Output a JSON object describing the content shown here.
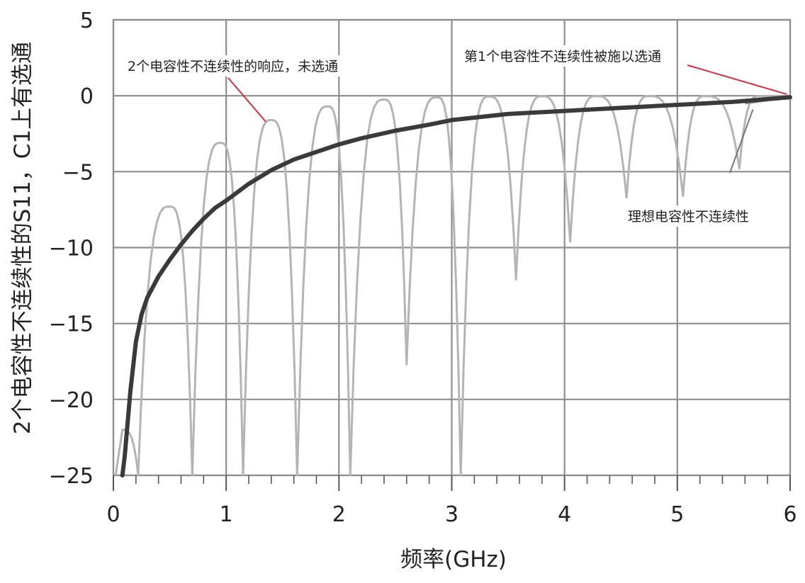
{
  "chart_data": {
    "type": "line",
    "title": "",
    "xlabel": "频率(GHz)",
    "ylabel": "2个电容性不连续性的S11，C1上有选通",
    "xlim": [
      0,
      6
    ],
    "ylim": [
      -25,
      5
    ],
    "x_ticks": [
      "0",
      "1",
      "2",
      "3",
      "4",
      "5",
      "6"
    ],
    "y_ticks": [
      "5",
      "0",
      "−5",
      "−10",
      "−15",
      "−20",
      "−25"
    ],
    "grid": true,
    "series": [
      {
        "name": "理想电容性不连续性",
        "color": "#3a3a3a",
        "x": [
          0.08,
          0.1,
          0.15,
          0.2,
          0.25,
          0.3,
          0.4,
          0.5,
          0.6,
          0.7,
          0.8,
          0.9,
          1.0,
          1.2,
          1.4,
          1.6,
          1.8,
          2.0,
          2.2,
          2.5,
          2.8,
          3.0,
          3.5,
          4.0,
          4.5,
          5.0,
          5.5,
          6.0
        ],
        "values": [
          -25,
          -23.8,
          -19.5,
          -16.2,
          -14.4,
          -13.3,
          -11.9,
          -10.8,
          -9.8,
          -8.9,
          -8.1,
          -7.4,
          -6.9,
          -5.8,
          -4.9,
          -4.2,
          -3.7,
          -3.2,
          -2.8,
          -2.3,
          -1.9,
          -1.6,
          -1.2,
          -1.0,
          -0.8,
          -0.6,
          -0.4,
          -0.1
        ]
      },
      {
        "name": "2个电容性不连续性的响应，未选通",
        "color": "#b4b4b4",
        "peaks_x": [
          0.08,
          0.5,
          0.95,
          1.4,
          1.9,
          2.4,
          2.87,
          3.33,
          3.8,
          4.28,
          4.75,
          5.25,
          5.73
        ],
        "peaks_y": [
          -22,
          -7.3,
          -3.1,
          -1.6,
          -0.7,
          -0.25,
          -0.1,
          -0.05,
          -0.03,
          -0.02,
          -0.02,
          -0.02,
          -0.02
        ],
        "nulls_x": [
          0.22,
          0.7,
          1.15,
          1.63,
          2.1,
          2.6,
          3.08,
          3.57,
          4.05,
          4.55,
          5.05,
          5.55
        ],
        "nulls_y": [
          -25,
          -25,
          -25,
          -25,
          -25,
          -17.7,
          -25,
          -12.1,
          -9.6,
          -6.7,
          -6.6,
          -4.8
        ]
      },
      {
        "name": "第1个电容性不连续性被施以选通",
        "color": "#8c8c8c",
        "x": [
          5.6,
          5.8,
          6.0
        ],
        "values": [
          -0.5,
          -0.3,
          0
        ]
      }
    ],
    "annotations": [
      {
        "text": "2个电容性不连续性的响应，未选通",
        "target_x": 1.35,
        "target_y": -1.7
      },
      {
        "text": "第1个电容性不连续性被施以选通",
        "target_x": 5.97,
        "target_y": 0.1
      },
      {
        "text": "理想电容性不连续性",
        "target_x": 5.67,
        "target_y": -0.9
      }
    ]
  }
}
